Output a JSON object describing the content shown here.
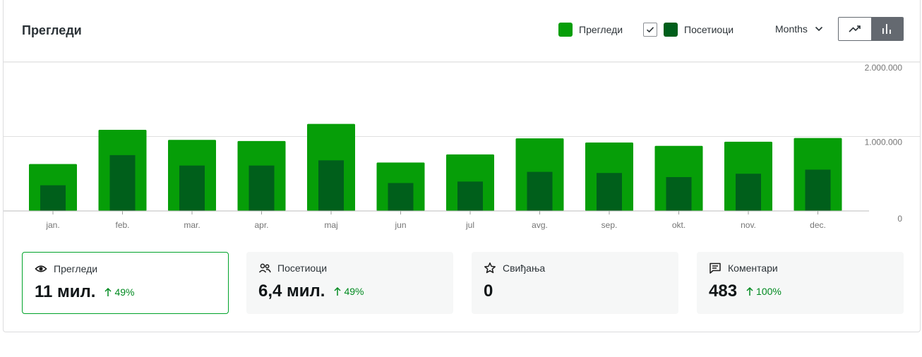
{
  "header": {
    "title": "Прегледи",
    "legend": {
      "views_label": "Прегледи",
      "visitors_label": "Посетиоци",
      "visitors_checked": true
    },
    "period": "Months",
    "chart_toggle": {
      "options": [
        "line-chart-icon",
        "bar-chart-icon"
      ],
      "active": "bar"
    }
  },
  "colors": {
    "views": "#069e08",
    "visitors": "#005f1b",
    "accent": "#00a32a",
    "positive": "#008a20"
  },
  "chart_data": {
    "type": "bar",
    "categories": [
      "jan.",
      "feb.",
      "mar.",
      "apr.",
      "maj",
      "jun",
      "jul",
      "avg.",
      "sep.",
      "okt.",
      "nov.",
      "dec."
    ],
    "series": [
      {
        "name": "Прегледи",
        "values": [
          630000,
          1090000,
          955000,
          940000,
          1170000,
          650000,
          760000,
          975000,
          920000,
          875000,
          930000,
          980000
        ]
      },
      {
        "name": "Посетиоци",
        "values": [
          345000,
          750000,
          610000,
          610000,
          680000,
          375000,
          395000,
          525000,
          510000,
          455000,
          500000,
          555000
        ]
      }
    ],
    "y_ticks": [
      "0",
      "1.000.000",
      "2.000.000"
    ],
    "ylim": [
      0,
      2000000
    ],
    "grid": true
  },
  "stats": [
    {
      "label": "Прегледи",
      "value": "11 мил.",
      "change": "49%",
      "icon": "eye-icon",
      "selected": true
    },
    {
      "label": "Посетиоци",
      "value": "6,4 мил.",
      "change": "49%",
      "icon": "people-icon",
      "selected": false
    },
    {
      "label": "Свиђања",
      "value": "0",
      "change": "",
      "icon": "star-icon",
      "selected": false
    },
    {
      "label": "Коментари",
      "value": "483",
      "change": "100%",
      "icon": "comment-icon",
      "selected": false
    }
  ]
}
